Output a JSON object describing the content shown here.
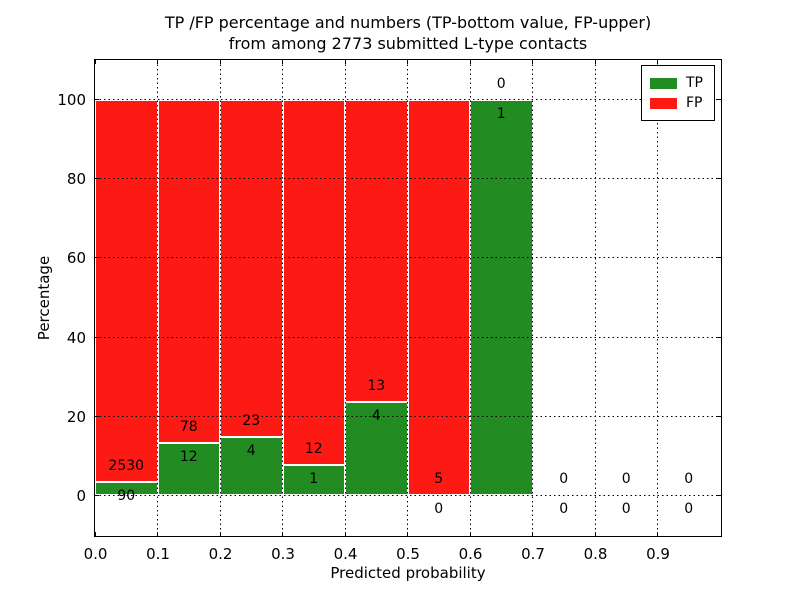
{
  "figure": {
    "title_line1": "TP /FP percentage and numbers (TP-bottom value, FP-upper)",
    "title_line2": "from among 2773 submitted L-type contacts",
    "xlabel": "Predicted probability",
    "ylabel": "Percentage"
  },
  "chart_data": {
    "type": "bar",
    "stacked": true,
    "title": "TP /FP percentage and numbers (TP-bottom value, FP-upper) from among 2773 submitted L-type contacts",
    "xlabel": "Predicted probability",
    "ylabel": "Percentage",
    "total_contacts": 2773,
    "xlim": [
      0.0,
      1.0
    ],
    "ylim": [
      -10,
      110
    ],
    "bin_width": 0.1,
    "bin_starts": [
      0.0,
      0.1,
      0.2,
      0.3,
      0.4,
      0.5,
      0.6,
      0.7,
      0.8,
      0.9
    ],
    "xtick_labels": [
      "0.0",
      "0.1",
      "0.2",
      "0.3",
      "0.4",
      "0.5",
      "0.6",
      "0.7",
      "0.8",
      "0.9"
    ],
    "yticks": [
      0,
      20,
      40,
      60,
      80,
      100
    ],
    "grid": "dotted",
    "legend_position": "upper right",
    "series": [
      {
        "name": "TP",
        "color": "#228b22",
        "values": [
          90,
          12,
          4,
          1,
          4,
          0,
          1,
          0,
          0,
          0
        ]
      },
      {
        "name": "FP",
        "color": "#fd1a14",
        "values": [
          2530,
          78,
          23,
          12,
          13,
          5,
          0,
          0,
          0,
          0
        ]
      }
    ],
    "tp_percentages": [
      3.44,
      13.33,
      14.81,
      7.69,
      23.53,
      0.0,
      100.0,
      0.0,
      0.0,
      0.0
    ],
    "annotation_note": "FP count printed above green-bar top, TP count printed below it, per bin"
  }
}
